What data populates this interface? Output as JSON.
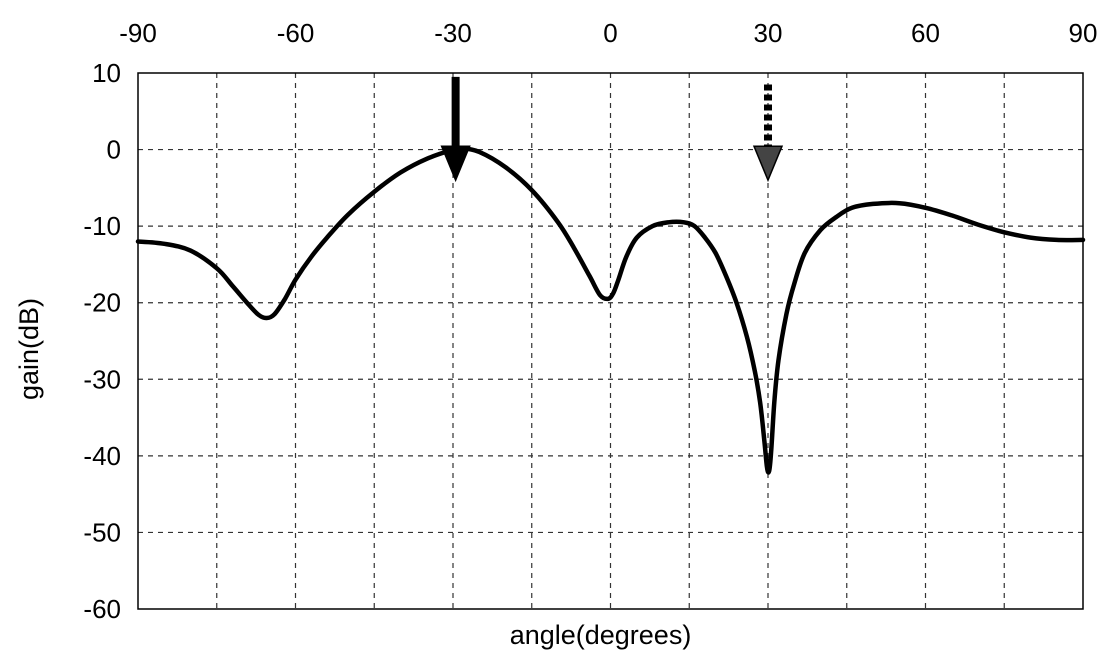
{
  "chart_data": {
    "type": "line",
    "title": "",
    "xlabel": "angle(degrees)",
    "ylabel": "gain(dB)",
    "xlim": [
      -90,
      90
    ],
    "ylim": [
      -60,
      10
    ],
    "x_ticks": [
      -90,
      -60,
      -30,
      0,
      30,
      60,
      90
    ],
    "x_tick_labels": [
      "-90",
      "-60",
      "-30",
      "0",
      "30",
      "60",
      "90"
    ],
    "x_tick_position": "top",
    "y_ticks": [
      10,
      0,
      -10,
      -20,
      -30,
      -40,
      -50,
      -60
    ],
    "y_tick_labels": [
      "10",
      "0",
      "-10",
      "-20",
      "-30",
      "-40",
      "-50",
      "-60"
    ],
    "grid": true,
    "grid_style": "dashed",
    "grid_x_step": 15,
    "grid_y_step": 10,
    "legend": "none",
    "series": [
      {
        "x": [
          -90,
          -85,
          -80,
          -75,
          -72,
          -69,
          -67,
          -65.5,
          -64,
          -62,
          -60,
          -57,
          -54,
          -50,
          -45,
          -40,
          -35,
          -30,
          -28.5,
          -25,
          -20,
          -15,
          -10,
          -7,
          -4,
          -2,
          -0.5,
          0.5,
          1.5,
          3,
          5,
          8,
          11,
          14,
          16,
          18,
          20,
          22,
          24,
          26,
          27.5,
          28.5,
          29.3,
          29.8,
          30.2,
          30.6,
          31.2,
          32,
          33.5,
          35,
          37,
          40,
          43,
          46,
          50,
          55,
          60,
          65,
          70,
          75,
          80,
          85,
          90
        ],
        "y": [
          -12,
          -12.3,
          -13.2,
          -15.5,
          -17.8,
          -20.2,
          -21.6,
          -22,
          -21.5,
          -19.5,
          -17,
          -14,
          -11.5,
          -8.5,
          -5.5,
          -3,
          -1.2,
          0,
          0.2,
          -0.3,
          -2.3,
          -5.3,
          -9.5,
          -12.8,
          -16.5,
          -19,
          -19.5,
          -18.8,
          -17,
          -14,
          -11.5,
          -10,
          -9.5,
          -9.5,
          -10,
          -11.5,
          -13.5,
          -16.5,
          -20,
          -24.5,
          -29,
          -33,
          -38,
          -41.5,
          -42,
          -39.5,
          -33,
          -27.5,
          -21.5,
          -17.5,
          -13.5,
          -10.5,
          -8.8,
          -7.6,
          -7.1,
          -7,
          -7.6,
          -8.6,
          -9.8,
          -10.8,
          -11.5,
          -11.8,
          -11.8
        ]
      }
    ],
    "annotations": [
      {
        "type": "arrow",
        "style": "solid",
        "x": -29.5,
        "y_from": 9.5,
        "y_to": -4,
        "color": "#000000"
      },
      {
        "type": "arrow",
        "style": "dashed",
        "x": 30,
        "y_from": 8.5,
        "y_to": -4,
        "color": "#000000"
      }
    ]
  }
}
